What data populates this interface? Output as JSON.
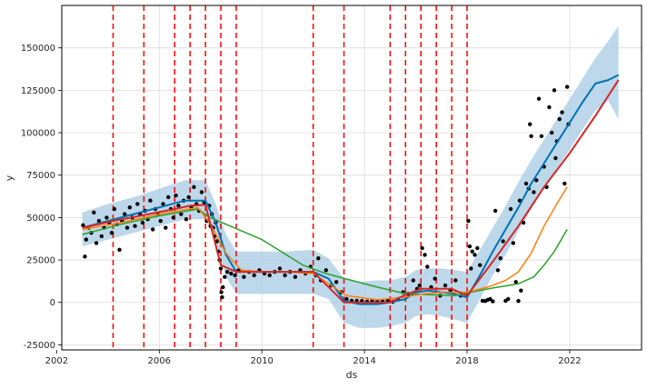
{
  "chart_data": {
    "type": "line",
    "title": "",
    "xlabel": "ds",
    "ylabel": "y",
    "xlim": [
      2002.2,
      2024.8
    ],
    "ylim": [
      -28000,
      175000
    ],
    "grid": true,
    "x_ticks": [
      2002,
      2006,
      2010,
      2014,
      2018,
      2022
    ],
    "y_ticks": [
      -25000,
      0,
      25000,
      50000,
      75000,
      100000,
      125000,
      150000
    ],
    "changepoints": [
      2004.2,
      2005.4,
      2006.6,
      2007.2,
      2007.8,
      2008.4,
      2009.0,
      2012.0,
      2013.2,
      2015.0,
      2015.6,
      2016.2,
      2016.8,
      2017.4,
      2018.0
    ],
    "series": [
      {
        "kind": "forecast_band",
        "color": "#a6cbe3",
        "x": [
          2003.0,
          2004.0,
          2005.0,
          2006.0,
          2007.0,
          2007.8,
          2008.2,
          2008.6,
          2009.0,
          2010.0,
          2011.0,
          2012.0,
          2012.6,
          2013.2,
          2013.8,
          2014.5,
          2015.0,
          2015.6,
          2016.0,
          2016.5,
          2017.0,
          2017.5,
          2018.0,
          2018.5,
          2019.0,
          2019.5,
          2020.0,
          2020.5,
          2021.0,
          2021.5,
          2022.0,
          2022.5,
          2023.0,
          2023.5,
          2023.9
        ],
        "upper": [
          53000,
          58000,
          62000,
          67000,
          72000,
          72000,
          58000,
          40000,
          30000,
          30000,
          30000,
          31000,
          26000,
          14000,
          12000,
          13000,
          13000,
          15000,
          19000,
          20000,
          20000,
          19000,
          18000,
          31000,
          44000,
          57000,
          71000,
          84000,
          96000,
          108000,
          120000,
          132000,
          144000,
          154000,
          163000
        ],
        "lower": [
          33000,
          37000,
          41000,
          45000,
          49000,
          49000,
          36000,
          15000,
          5000,
          5000,
          5000,
          5000,
          2000,
          -12000,
          -15000,
          -15000,
          -14000,
          -12000,
          -8000,
          -7000,
          -8000,
          -10000,
          -12000,
          2000,
          16000,
          28000,
          42000,
          55000,
          67000,
          79000,
          90000,
          102000,
          113000,
          119000,
          108000
        ]
      },
      {
        "kind": "forecast",
        "color": "#0072b2",
        "x": [
          2003.0,
          2004.0,
          2005.0,
          2006.0,
          2007.0,
          2007.8,
          2008.2,
          2008.6,
          2009.0,
          2010.0,
          2011.0,
          2012.0,
          2012.6,
          2013.2,
          2013.8,
          2014.5,
          2015.0,
          2015.6,
          2016.0,
          2016.5,
          2017.0,
          2017.5,
          2018.0,
          2018.5,
          2019.0,
          2019.5,
          2020.0,
          2020.5,
          2021.0,
          2021.5,
          2022.0,
          2022.5,
          2023.0,
          2023.5,
          2023.9
        ],
        "y": [
          44000,
          48000,
          52000,
          56000,
          60000,
          60000,
          47000,
          28000,
          18000,
          18000,
          18000,
          18000,
          14000,
          1000,
          -1000,
          -1000,
          0,
          2000,
          6000,
          7000,
          6000,
          5000,
          3000,
          16000,
          30000,
          43000,
          56000,
          70000,
          82000,
          94000,
          106000,
          118000,
          129000,
          131000,
          134000
        ]
      },
      {
        "kind": "trend_a",
        "color": "#d62728",
        "x": [
          2003.0,
          2004.2,
          2005.4,
          2006.6,
          2007.2,
          2007.8,
          2008.4,
          2009.0,
          2012.0,
          2013.2,
          2015.0,
          2015.6,
          2016.2,
          2016.8,
          2017.4,
          2018.0,
          2019.0,
          2020.0,
          2021.0,
          2022.0,
          2023.0,
          2023.9
        ],
        "y": [
          44000,
          48000,
          51500,
          55000,
          57000,
          57500,
          22000,
          18000,
          18000,
          0,
          0,
          4500,
          8000,
          8000,
          8000,
          4000,
          24000,
          45000,
          68000,
          88000,
          110000,
          131000
        ]
      },
      {
        "kind": "trend_b",
        "color": "#ff7f0e",
        "x": [
          2003.0,
          2004.5,
          2006.0,
          2007.5,
          2008.0,
          2008.6,
          2009.2,
          2010.0,
          2011.0,
          2012.0,
          2013.3,
          2014.5,
          2015.5,
          2016.3,
          2017.0,
          2017.6,
          2018.0,
          2018.8,
          2019.5,
          2020.0,
          2020.5,
          2021.0,
          2021.5,
          2021.9
        ],
        "y": [
          43000,
          47000,
          52000,
          56000,
          46000,
          29000,
          19000,
          18000,
          18000,
          17000,
          4000,
          1500,
          3000,
          5000,
          6000,
          6000,
          6000,
          9000,
          13000,
          18000,
          29000,
          45000,
          58000,
          68000
        ]
      },
      {
        "kind": "trend_c",
        "color": "#2ca02c",
        "x": [
          2003.0,
          2004.5,
          2006.0,
          2007.5,
          2008.0,
          2010.0,
          2011.6,
          2012.5,
          2013.5,
          2014.5,
          2015.5,
          2016.5,
          2017.5,
          2018.3,
          2019.0,
          2020.0,
          2020.6,
          2021.0,
          2021.4,
          2021.9
        ],
        "y": [
          40000,
          46000,
          51000,
          55000,
          50000,
          37000,
          22000,
          17000,
          13000,
          9000,
          5500,
          4500,
          4000,
          6500,
          8500,
          11000,
          15000,
          22000,
          30000,
          43000
        ]
      }
    ],
    "observations": [
      [
        2003.03,
        45500
      ],
      [
        2003.1,
        27000
      ],
      [
        2003.15,
        37000
      ],
      [
        2003.25,
        44000
      ],
      [
        2003.35,
        41000
      ],
      [
        2003.45,
        53000
      ],
      [
        2003.55,
        35000
      ],
      [
        2003.65,
        48000
      ],
      [
        2003.75,
        39000
      ],
      [
        2003.85,
        44000
      ],
      [
        2003.95,
        50000
      ],
      [
        2004.05,
        47000
      ],
      [
        2004.15,
        41000
      ],
      [
        2004.25,
        55000
      ],
      [
        2004.35,
        46000
      ],
      [
        2004.45,
        31000
      ],
      [
        2004.55,
        48000
      ],
      [
        2004.65,
        52000
      ],
      [
        2004.75,
        44000
      ],
      [
        2004.85,
        56000
      ],
      [
        2004.95,
        50000
      ],
      [
        2005.05,
        45000
      ],
      [
        2005.15,
        58000
      ],
      [
        2005.25,
        52000
      ],
      [
        2005.35,
        47000
      ],
      [
        2005.45,
        54000
      ],
      [
        2005.55,
        49000
      ],
      [
        2005.65,
        60000
      ],
      [
        2005.75,
        43000
      ],
      [
        2005.85,
        55000
      ],
      [
        2005.95,
        52000
      ],
      [
        2006.05,
        48000
      ],
      [
        2006.15,
        58000
      ],
      [
        2006.25,
        44000
      ],
      [
        2006.35,
        62000
      ],
      [
        2006.45,
        55000
      ],
      [
        2006.55,
        50000
      ],
      [
        2006.65,
        63000
      ],
      [
        2006.75,
        57000
      ],
      [
        2006.85,
        52000
      ],
      [
        2006.95,
        60000
      ],
      [
        2007.05,
        49000
      ],
      [
        2007.15,
        62000
      ],
      [
        2007.25,
        56000
      ],
      [
        2007.35,
        68000
      ],
      [
        2007.45,
        58000
      ],
      [
        2007.55,
        54000
      ],
      [
        2007.65,
        65000
      ],
      [
        2007.75,
        59000
      ],
      [
        2007.85,
        48000
      ],
      [
        2007.95,
        57000
      ],
      [
        2008.0,
        45000
      ],
      [
        2008.05,
        52000
      ],
      [
        2008.1,
        44000
      ],
      [
        2008.15,
        39000
      ],
      [
        2008.2,
        47000
      ],
      [
        2008.25,
        36000
      ],
      [
        2008.3,
        30000
      ],
      [
        2008.35,
        25000
      ],
      [
        2008.4,
        20000
      ],
      [
        2008.42,
        6000
      ],
      [
        2008.45,
        3000
      ],
      [
        2008.48,
        9000
      ],
      [
        2008.55,
        15000
      ],
      [
        2008.65,
        18000
      ],
      [
        2008.8,
        17000
      ],
      [
        2008.95,
        16000
      ],
      [
        2009.1,
        19000
      ],
      [
        2009.3,
        15000
      ],
      [
        2009.5,
        18000
      ],
      [
        2009.7,
        16000
      ],
      [
        2009.9,
        19000
      ],
      [
        2010.1,
        17000
      ],
      [
        2010.3,
        16000
      ],
      [
        2010.5,
        18000
      ],
      [
        2010.7,
        20000
      ],
      [
        2010.9,
        16000
      ],
      [
        2011.1,
        18000
      ],
      [
        2011.3,
        15000
      ],
      [
        2011.5,
        19000
      ],
      [
        2011.7,
        17000
      ],
      [
        2011.9,
        21000
      ],
      [
        2012.1,
        16000
      ],
      [
        2012.2,
        26000
      ],
      [
        2012.3,
        13000
      ],
      [
        2012.5,
        19000
      ],
      [
        2012.7,
        10000
      ],
      [
        2012.9,
        12000
      ],
      [
        2013.1,
        6000
      ],
      [
        2013.3,
        2000
      ],
      [
        2013.5,
        1000
      ],
      [
        2013.7,
        1000
      ],
      [
        2013.9,
        800
      ],
      [
        2014.1,
        500
      ],
      [
        2014.3,
        1000
      ],
      [
        2014.5,
        600
      ],
      [
        2014.7,
        800
      ],
      [
        2014.9,
        1200
      ],
      [
        2015.1,
        400
      ],
      [
        2015.3,
        2000
      ],
      [
        2015.5,
        6000
      ],
      [
        2015.7,
        5000
      ],
      [
        2015.9,
        13000
      ],
      [
        2016.05,
        8000
      ],
      [
        2016.15,
        10000
      ],
      [
        2016.25,
        32000
      ],
      [
        2016.35,
        28000
      ],
      [
        2016.45,
        21000
      ],
      [
        2016.6,
        9000
      ],
      [
        2016.75,
        14000
      ],
      [
        2016.95,
        4000
      ],
      [
        2017.15,
        10000
      ],
      [
        2017.35,
        7000
      ],
      [
        2017.55,
        13000
      ],
      [
        2017.75,
        4000
      ],
      [
        2017.95,
        5000
      ],
      [
        2018.05,
        48000
      ],
      [
        2018.1,
        33000
      ],
      [
        2018.15,
        20000
      ],
      [
        2018.2,
        30000
      ],
      [
        2018.3,
        28000
      ],
      [
        2018.4,
        32000
      ],
      [
        2018.5,
        22000
      ],
      [
        2018.6,
        1000
      ],
      [
        2018.7,
        800
      ],
      [
        2018.8,
        1500
      ],
      [
        2018.9,
        2000
      ],
      [
        2019.0,
        600
      ],
      [
        2019.1,
        54000
      ],
      [
        2019.2,
        19000
      ],
      [
        2019.3,
        26000
      ],
      [
        2019.4,
        36000
      ],
      [
        2019.5,
        1000
      ],
      [
        2019.6,
        2000
      ],
      [
        2019.7,
        55000
      ],
      [
        2019.8,
        35000
      ],
      [
        2019.9,
        12000
      ],
      [
        2020.0,
        800
      ],
      [
        2020.05,
        60000
      ],
      [
        2020.1,
        7000
      ],
      [
        2020.2,
        47000
      ],
      [
        2020.3,
        70000
      ],
      [
        2020.4,
        67000
      ],
      [
        2020.45,
        105000
      ],
      [
        2020.5,
        98000
      ],
      [
        2020.6,
        65000
      ],
      [
        2020.7,
        72000
      ],
      [
        2020.8,
        120000
      ],
      [
        2020.9,
        98000
      ],
      [
        2021.0,
        80000
      ],
      [
        2021.1,
        68000
      ],
      [
        2021.2,
        115000
      ],
      [
        2021.3,
        100000
      ],
      [
        2021.4,
        125000
      ],
      [
        2021.45,
        85000
      ],
      [
        2021.5,
        95000
      ],
      [
        2021.6,
        108000
      ],
      [
        2021.7,
        112000
      ],
      [
        2021.8,
        70000
      ],
      [
        2021.9,
        127000
      ],
      [
        2021.95,
        105000
      ]
    ]
  }
}
